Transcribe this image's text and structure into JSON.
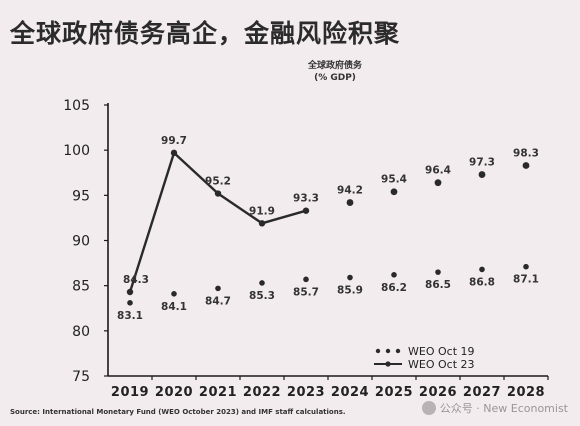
{
  "slide": {
    "title": "全球政府债务高企，金融风险积聚",
    "source": "Source: International Monetary Fund (WEO October 2023) and IMF staff calculations.",
    "watermark": "公众号 · New Economist"
  },
  "chart_data": {
    "type": "line",
    "title": "全球政府债务",
    "subtitle": "(% GDP)",
    "xlabel": "",
    "ylabel": "",
    "categories": [
      "2019",
      "2020",
      "2021",
      "2022",
      "2023",
      "2024",
      "2025",
      "2026",
      "2027",
      "2028"
    ],
    "ylim": [
      75,
      105
    ],
    "yticks": [
      75,
      80,
      85,
      90,
      95,
      100,
      105
    ],
    "grid": false,
    "legend_position": "bottom-right",
    "series": [
      {
        "name": "WEO Oct 19",
        "style": "dots",
        "values": [
          83.1,
          84.1,
          84.7,
          85.3,
          85.7,
          85.9,
          86.2,
          86.5,
          86.8,
          87.1
        ],
        "labels": [
          "83.1",
          "84.1",
          "84.7",
          "85.3",
          "85.7",
          "85.9",
          "86.2",
          "86.5",
          "86.8",
          "87.1"
        ]
      },
      {
        "name": "WEO Oct 23",
        "style": "line-then-dots",
        "values": [
          84.3,
          99.7,
          95.2,
          91.9,
          93.3,
          94.2,
          95.4,
          96.4,
          97.3,
          98.3
        ],
        "labels": [
          "84.3",
          "99.7",
          "95.2",
          "91.9",
          "93.3",
          "94.2",
          "95.4",
          "96.4",
          "97.3",
          "98.3"
        ],
        "solid_until_index": 4
      }
    ],
    "colors": {
      "line": "#2a2a2a",
      "axis": "#1a1a1a"
    }
  }
}
